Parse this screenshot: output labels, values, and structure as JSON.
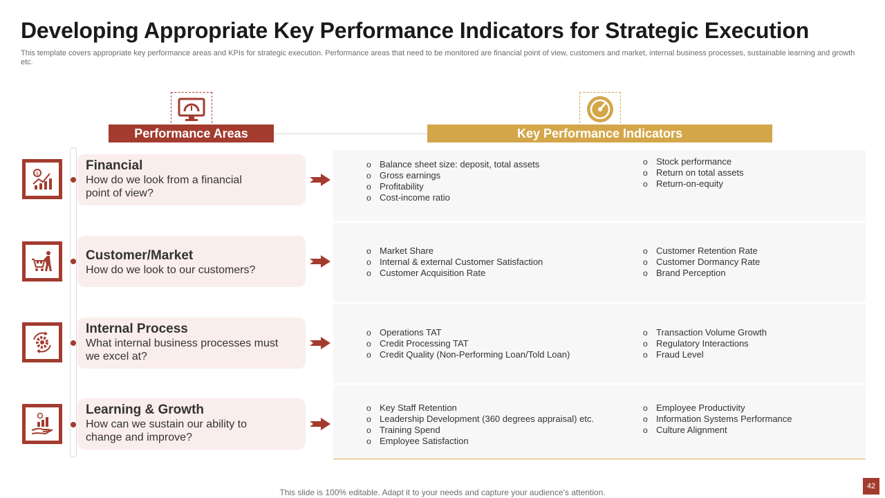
{
  "title": "Developing Appropriate Key Performance Indicators for Strategic Execution",
  "subtitle": "This template covers appropriate key performance areas and KPIs for strategic execution. Performance areas that need to be monitored are financial point of view,  customers and market, internal business processes, sustainable learning and growth etc.",
  "headers": {
    "performance_areas": "Performance Areas",
    "kpis": "Key Performance Indicators",
    "performance_areas_icon": "monitor-gauge-icon",
    "kpis_icon": "speedometer-icon"
  },
  "rows": [
    {
      "title": "Financial",
      "desc": "How do we look from a financial point of view?",
      "icon": "financial-chart-icon",
      "kpi_left": [
        "Balance sheet size: deposit, total assets",
        "Gross earnings",
        "Profitability",
        "Cost-income ratio"
      ],
      "kpi_right": [
        "Stock performance",
        "Return on total assets",
        "Return-on-equity"
      ]
    },
    {
      "title": "Customer/Market",
      "desc": "How do we look to our customers?",
      "icon": "shopping-customer-icon",
      "kpi_left": [
        "Market Share",
        "Internal  & external Customer Satisfaction",
        "Customer Acquisition Rate"
      ],
      "kpi_right": [
        "Customer Retention Rate",
        "Customer Dormancy Rate",
        "Brand Perception"
      ]
    },
    {
      "title": "Internal Process",
      "desc": "What internal business processes must we excel at?",
      "icon": "process-gear-icon",
      "kpi_left": [
        "Operations TAT",
        "Credit Processing TAT",
        "Credit Quality (Non-Performing  Loan/Told  Loan)"
      ],
      "kpi_right": [
        "Transaction Volume Growth",
        "Regulatory Interactions",
        "Fraud Level"
      ]
    },
    {
      "title": "Learning & Growth",
      "desc": "How can we sustain our ability to change and improve?",
      "icon": "growth-hand-icon",
      "kpi_left": [
        "Key Staff Retention",
        "Leadership Development  (360 degrees appraisal) etc.",
        "Training  Spend",
        "Employee Satisfaction"
      ],
      "kpi_right": [
        "Employee Productivity",
        "Information  Systems Performance",
        "Culture Alignment"
      ]
    }
  ],
  "footer": "This slide is 100% editable. Adapt it to your needs and capture your audience's attention.",
  "page_number": "42",
  "colors": {
    "primary": "#a33b2f",
    "accent": "#d4a64a",
    "card_bg": "#faeeec",
    "panel_bg": "#f7f7f7"
  }
}
